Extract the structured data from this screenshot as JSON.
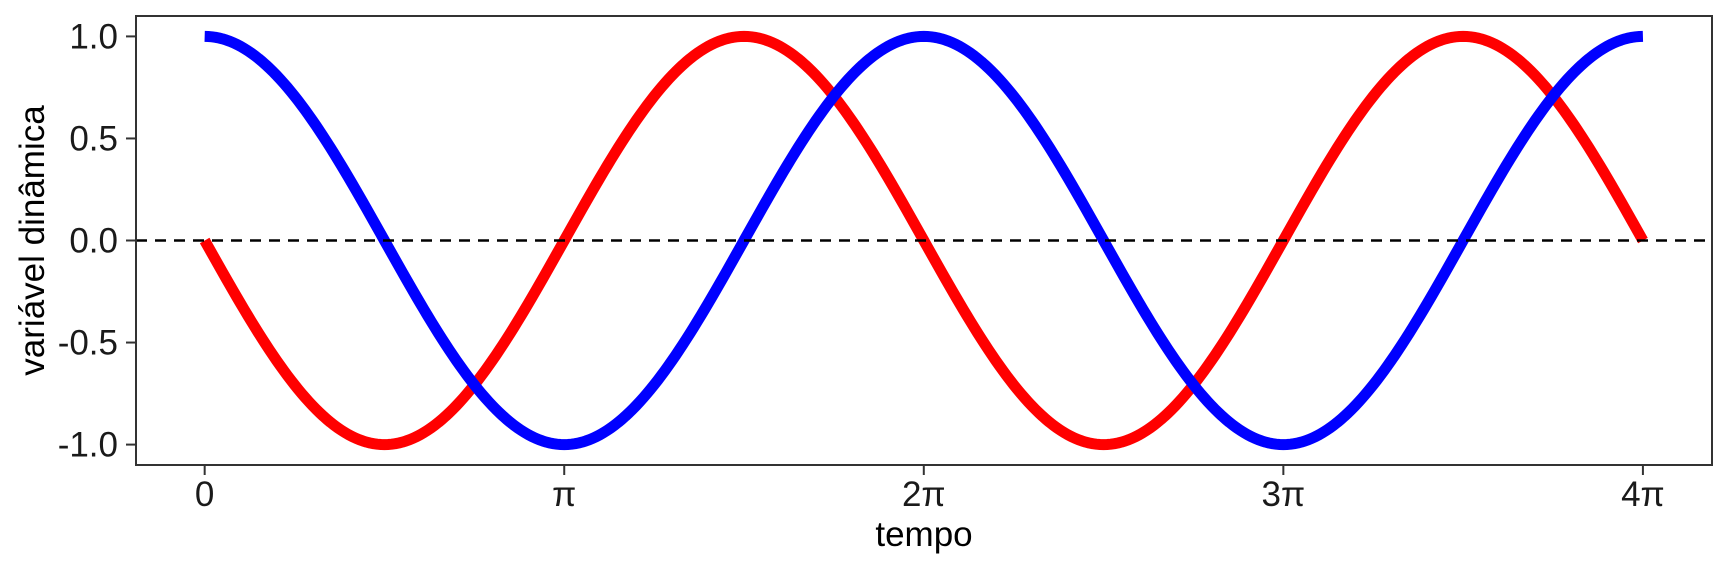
{
  "chart_data": {
    "type": "line",
    "title": "",
    "xlabel": "tempo",
    "ylabel": "variável dinâmica",
    "xlim": [
      -0.6,
      13.17
    ],
    "ylim": [
      -1.1,
      1.1
    ],
    "x_ticks": [
      {
        "value": 0,
        "label": "0"
      },
      {
        "value": 3.14159,
        "label": "π"
      },
      {
        "value": 6.28319,
        "label": "2π"
      },
      {
        "value": 9.42478,
        "label": "3π"
      },
      {
        "value": 12.56637,
        "label": "4π"
      }
    ],
    "y_ticks": [
      {
        "value": -1.0,
        "label": "-1.0"
      },
      {
        "value": -0.5,
        "label": "-0.5"
      },
      {
        "value": 0.0,
        "label": "0.0"
      },
      {
        "value": 0.5,
        "label": "0.5"
      },
      {
        "value": 1.0,
        "label": "1.0"
      }
    ],
    "reference_line": {
      "y": 0,
      "style": "dashed",
      "color": "#000000"
    },
    "grid": false,
    "legend": "none",
    "series": [
      {
        "function": "-sin(t)",
        "color": "#ff0000",
        "x": [
          0,
          0.7854,
          1.5708,
          2.3562,
          3.1416,
          3.927,
          4.7124,
          5.4978,
          6.2832,
          7.0686,
          7.854,
          8.6394,
          9.4248,
          10.2102,
          10.9956,
          11.781,
          12.5664
        ],
        "y": [
          0.0,
          -0.707,
          -1.0,
          -0.707,
          0.0,
          0.707,
          1.0,
          0.707,
          0.0,
          -0.707,
          -1.0,
          -0.707,
          0.0,
          0.707,
          1.0,
          0.707,
          0.0
        ]
      },
      {
        "function": "cos(t)",
        "color": "#0000ff",
        "x": [
          0,
          0.7854,
          1.5708,
          2.3562,
          3.1416,
          3.927,
          4.7124,
          5.4978,
          6.2832,
          7.0686,
          7.854,
          8.6394,
          9.4248,
          10.2102,
          10.9956,
          11.781,
          12.5664
        ],
        "y": [
          1.0,
          0.707,
          0.0,
          -0.707,
          -1.0,
          -0.707,
          0.0,
          0.707,
          1.0,
          0.707,
          0.0,
          -0.707,
          -1.0,
          -0.707,
          0.0,
          0.707,
          1.0
        ]
      }
    ]
  }
}
